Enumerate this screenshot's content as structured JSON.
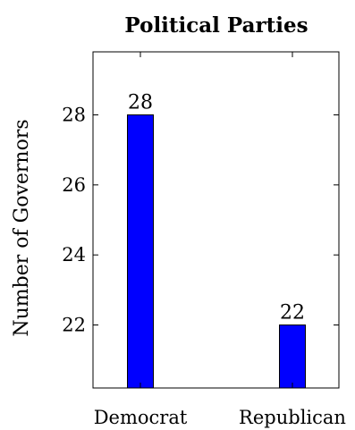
{
  "chart_data": {
    "type": "bar",
    "title": "Political Parties",
    "xlabel": "",
    "ylabel": "Number of Governors",
    "categories": [
      "Democrat",
      "Republican"
    ],
    "values": [
      28,
      22
    ],
    "data_labels": [
      "28",
      "22"
    ],
    "ylim": [
      20.2,
      29.8
    ],
    "yticks": [
      22,
      24,
      26,
      28
    ],
    "ytick_labels": [
      "22",
      "24",
      "26",
      "28"
    ],
    "grid": false,
    "legend": "none",
    "bar_color": "#0000ff",
    "bar_edge_color": "#000000"
  }
}
